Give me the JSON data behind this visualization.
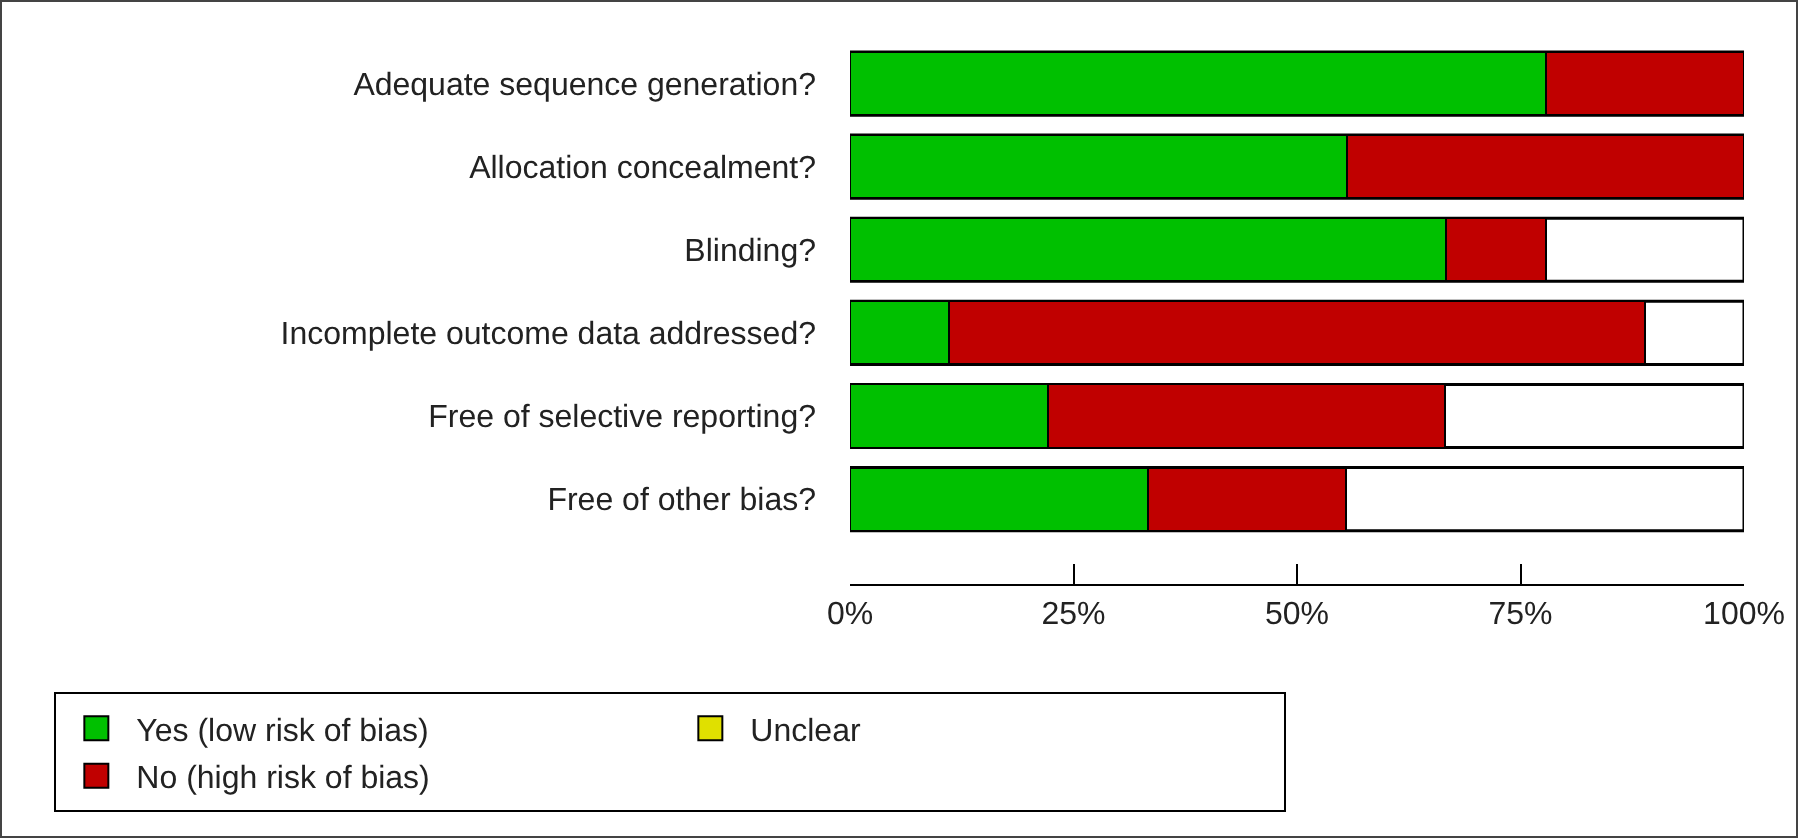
{
  "chart_data": {
    "type": "bar",
    "orientation": "horizontal",
    "stacked": true,
    "categories": [
      "Adequate sequence generation?",
      "Allocation concealment?",
      "Blinding?",
      "Incomplete outcome data addressed?",
      "Free of selective reporting?",
      "Free of other bias?"
    ],
    "series": [
      {
        "name": "Yes (low risk of bias)",
        "color": "#00c000",
        "values": [
          77.8,
          55.6,
          66.7,
          11.1,
          22.2,
          33.3
        ]
      },
      {
        "name": "Unclear",
        "color": "#e0e000",
        "values": [
          0,
          0,
          0,
          0,
          0,
          0
        ]
      },
      {
        "name": "No (high risk of bias)",
        "color": "#c00000",
        "values": [
          22.2,
          44.4,
          11.1,
          77.8,
          44.4,
          22.2
        ]
      }
    ],
    "xlim": [
      0,
      100
    ],
    "xticks": [
      {
        "value": 0,
        "label": "0%"
      },
      {
        "value": 25,
        "label": "25%"
      },
      {
        "value": 50,
        "label": "50%"
      },
      {
        "value": 75,
        "label": "75%"
      },
      {
        "value": 100,
        "label": "100%"
      }
    ],
    "grid": false,
    "legend": "bottom"
  }
}
